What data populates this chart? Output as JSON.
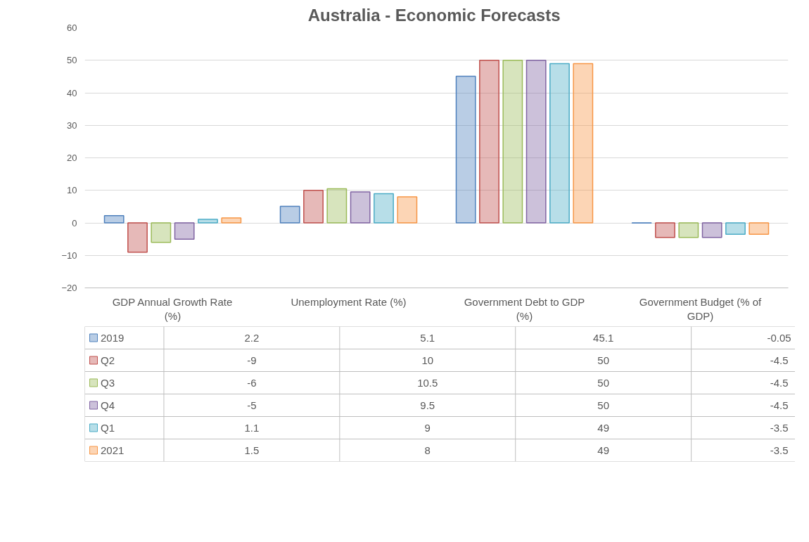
{
  "chart_data": {
    "type": "bar",
    "title": "Australia  - Economic Forecasts",
    "categories": [
      "GDP Annual Growth Rate (%)",
      "Unemployment Rate (%)",
      "Government Debt to GDP (%)",
      "Government Budget (% of GDP)"
    ],
    "series": [
      {
        "name": "2019",
        "color": "#4f81bd",
        "values": [
          2.2,
          5.1,
          45.1,
          -0.05
        ]
      },
      {
        "name": "Q2",
        "color": "#c0504d",
        "values": [
          -9,
          10,
          50,
          -4.5
        ]
      },
      {
        "name": "Q3",
        "color": "#9bbb59",
        "values": [
          -6,
          10.5,
          50,
          -4.5
        ]
      },
      {
        "name": "Q4",
        "color": "#8064a2",
        "values": [
          -5,
          9.5,
          50,
          -4.5
        ]
      },
      {
        "name": "Q1",
        "color": "#4bacc6",
        "values": [
          1.1,
          9,
          49,
          -3.5
        ]
      },
      {
        "name": "2021",
        "color": "#f79646",
        "values": [
          1.5,
          8,
          49,
          -3.5
        ]
      }
    ],
    "ylim": [
      -20,
      60
    ],
    "yticks": [
      -20,
      -10,
      0,
      10,
      20,
      30,
      40,
      50,
      60
    ],
    "grid": "y",
    "legend": "bottom",
    "data_labels": true
  }
}
